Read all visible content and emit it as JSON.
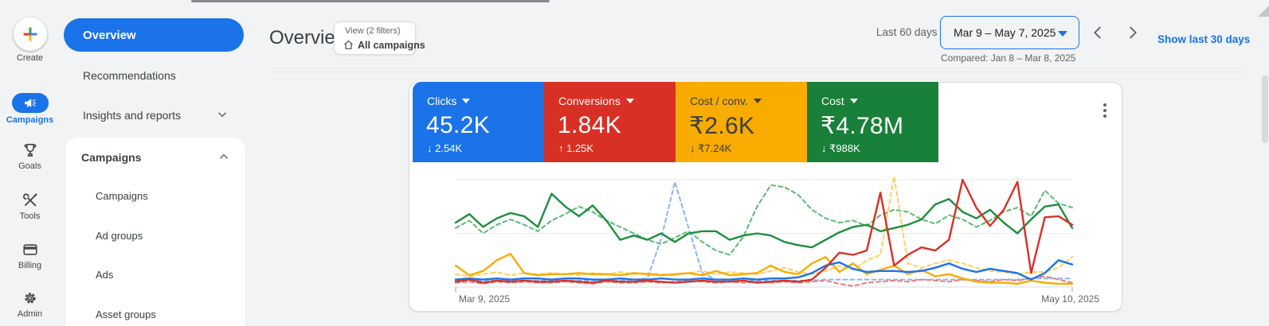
{
  "rail": {
    "items": [
      {
        "label": "Create",
        "icon": "plus-create-icon",
        "active": false
      },
      {
        "label": "Campaigns",
        "icon": "megaphone-icon",
        "active": true
      },
      {
        "label": "Goals",
        "icon": "trophy-icon",
        "active": false
      },
      {
        "label": "Tools",
        "icon": "wrench-icon",
        "active": false
      },
      {
        "label": "Billing",
        "icon": "credit-card-icon",
        "active": false
      },
      {
        "label": "Admin",
        "icon": "gear-icon",
        "active": false
      }
    ]
  },
  "nav": {
    "overview": "Overview",
    "recommendations": "Recommendations",
    "insights": "Insights and reports",
    "section": {
      "title": "Campaigns",
      "items": [
        "Campaigns",
        "Ad groups",
        "Ads",
        "Asset groups"
      ]
    }
  },
  "header": {
    "title": "Overview",
    "view_chip": {
      "top": "View (2 filters)",
      "bottom": "All campaigns",
      "icon": "home-icon"
    },
    "range_label": "Last 60 days",
    "range_value": "Mar 9 – May 7, 2025",
    "compared": "Compared: Jan 8 – Mar 8, 2025",
    "quick_link": "Show last 30 days"
  },
  "metrics": [
    {
      "label": "Clicks",
      "value": "45.2K",
      "delta": "↓ 2.54K",
      "direction": "down",
      "color": "#1a73e8",
      "text_color": "#ffffff"
    },
    {
      "label": "Conversions",
      "value": "1.84K",
      "delta": "↑ 1.25K",
      "direction": "up",
      "color": "#d93025",
      "text_color": "#ffffff"
    },
    {
      "label": "Cost / conv.",
      "value": "₹2.6K",
      "delta": "↓ ₹7.24K",
      "direction": "down",
      "color": "#f9ab00",
      "text_color": "#3c4043"
    },
    {
      "label": "Cost",
      "value": "₹4.78M",
      "delta": "↓ ₹988K",
      "direction": "down",
      "color": "#188038",
      "text_color": "#ffffff"
    }
  ],
  "chart_data": {
    "type": "line",
    "x_labels": [
      "Mar 9, 2025",
      "May 10, 2025"
    ],
    "x_range": [
      "Mar 9, 2025",
      "May 10, 2025"
    ],
    "ylim": [
      0,
      100
    ],
    "grid": "horizontal",
    "legend": "none",
    "series": [
      {
        "name": "Cost (compared)",
        "color": "#5bb974",
        "style": "dashed",
        "values": [
          55,
          62,
          50,
          58,
          63,
          58,
          52,
          62,
          68,
          75,
          70,
          62,
          56,
          50,
          44,
          40,
          46,
          52,
          42,
          34,
          30,
          47,
          75,
          95,
          93,
          86,
          72,
          64,
          60,
          62,
          57,
          67,
          72,
          70,
          63,
          59,
          67,
          63,
          56,
          62,
          70,
          74,
          66,
          90,
          78,
          74
        ]
      },
      {
        "name": "Cost / conv. (compared)",
        "color": "#fdd05f",
        "style": "dashed",
        "values": [
          12,
          10,
          12,
          14,
          11,
          13,
          12,
          13,
          12,
          11,
          13,
          12,
          14,
          12,
          13,
          12,
          11,
          13,
          15,
          12,
          14,
          13,
          12,
          15,
          18,
          14,
          12,
          15,
          20,
          16,
          25,
          30,
          103,
          22,
          18,
          22,
          25,
          22,
          18,
          15,
          14,
          12,
          14,
          14,
          18,
          28
        ]
      },
      {
        "name": "Clicks (compared)",
        "color": "#8ab4f8",
        "style": "dashed",
        "values": [
          6,
          6,
          6,
          6,
          6,
          6,
          6,
          6,
          6,
          6,
          6,
          6,
          6,
          7,
          8,
          45,
          98,
          55,
          13,
          7,
          6,
          6,
          6,
          6,
          6,
          6,
          6,
          7,
          7,
          7,
          7,
          7,
          7,
          7,
          7,
          7,
          7,
          7,
          7,
          7,
          7,
          7,
          8,
          8,
          8,
          8
        ]
      },
      {
        "name": "Conversions (compared)",
        "color": "#ec7f73",
        "style": "dashed",
        "values": [
          4,
          5,
          3,
          5,
          4,
          5,
          4,
          4,
          5,
          4,
          3,
          5,
          4,
          4,
          5,
          4,
          5,
          6,
          5,
          4,
          5,
          4,
          5,
          4,
          5,
          4,
          5,
          6,
          3,
          1,
          4,
          5,
          6,
          5,
          7,
          6,
          5,
          7,
          6,
          5,
          7,
          6,
          8,
          10,
          7,
          4
        ]
      },
      {
        "name": "Cost",
        "color": "#1e8e3e",
        "style": "solid",
        "values": [
          60,
          68,
          56,
          64,
          69,
          66,
          56,
          87,
          75,
          66,
          76,
          62,
          44,
          48,
          44,
          50,
          42,
          50,
          52,
          52,
          44,
          48,
          50,
          48,
          42,
          39,
          37,
          44,
          51,
          56,
          58,
          52,
          55,
          58,
          63,
          77,
          82,
          70,
          64,
          72,
          60,
          50,
          63,
          75,
          77,
          55
        ]
      },
      {
        "name": "Cost / conv.",
        "color": "#f9ab00",
        "style": "solid",
        "values": [
          20,
          11,
          15,
          25,
          31,
          13,
          11,
          12,
          12,
          13,
          12,
          12,
          11,
          13,
          12,
          11,
          12,
          13,
          11,
          15,
          11,
          12,
          13,
          20,
          14,
          12,
          22,
          28,
          14,
          22,
          12,
          16,
          20,
          12,
          16,
          10,
          12,
          8,
          5,
          4,
          4,
          3,
          6,
          4,
          3,
          3
        ]
      },
      {
        "name": "Clicks",
        "color": "#1a73e8",
        "style": "solid",
        "values": [
          7,
          8,
          7,
          8,
          7,
          8,
          8,
          7,
          8,
          8,
          7,
          7,
          8,
          7,
          7,
          8,
          7,
          7,
          8,
          7,
          7,
          8,
          7,
          8,
          8,
          9,
          13,
          20,
          23,
          17,
          14,
          15,
          15,
          14,
          15,
          18,
          22,
          17,
          14,
          17,
          15,
          13,
          7,
          13,
          25,
          21
        ]
      },
      {
        "name": "Conversions",
        "color": "#d93025",
        "style": "solid",
        "values": [
          5,
          7,
          4,
          6,
          5,
          6,
          5,
          5,
          6,
          5,
          4,
          6,
          5,
          5,
          6,
          5,
          4,
          5,
          6,
          5,
          5,
          6,
          4,
          5,
          6,
          5,
          7,
          18,
          32,
          30,
          34,
          88,
          20,
          30,
          37,
          34,
          44,
          100,
          74,
          57,
          72,
          98,
          13,
          65,
          66,
          58
        ]
      }
    ]
  }
}
